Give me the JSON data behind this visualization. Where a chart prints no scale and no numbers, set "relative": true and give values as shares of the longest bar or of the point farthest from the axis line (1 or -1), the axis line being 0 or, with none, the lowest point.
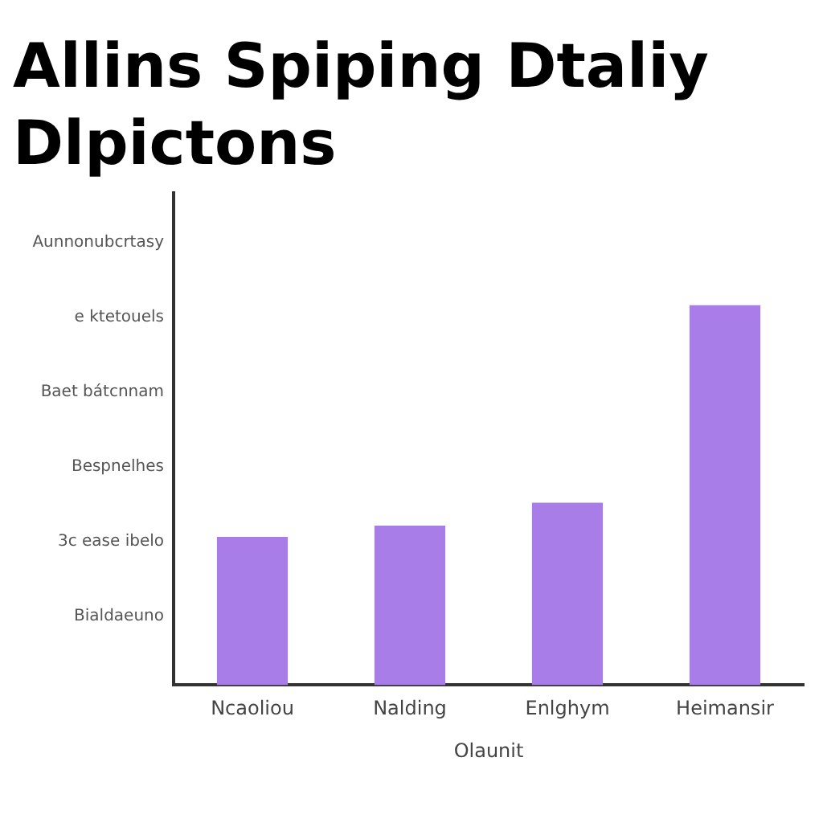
{
  "chart_data": {
    "type": "bar",
    "title": "Allins Spiping Dtaliy Dlpictons",
    "xlabel": "Olaunit",
    "categories": [
      "Ncaoliou",
      "Nalding",
      "Enlghym",
      "Heimansir"
    ],
    "values": [
      0.39,
      0.42,
      0.48,
      1
    ],
    "color": "#a87de8",
    "relative": true,
    "grid": false,
    "legend": false,
    "annotations": [
      "Aunnonubcrtasy",
      "e ktetouels",
      "Baet bátcnnam",
      "Bespnelhes",
      "3c ease ibelo",
      "Bialdaeuno"
    ]
  }
}
